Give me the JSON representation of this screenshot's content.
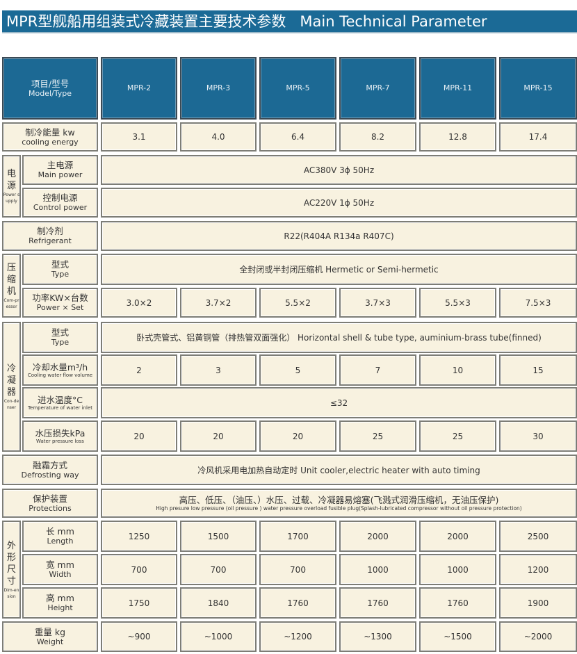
{
  "title": "MPR型舰船用组装式冷藏装置主要技术参数   Main Technical Parameter",
  "colors": {
    "header_blue": "#1c6994",
    "cell_beige": "#f8f2e0"
  },
  "header": {
    "label_cn": "项目/型号",
    "label_en": "Model/Type",
    "models": [
      "MPR-2",
      "MPR-3",
      "MPR-5",
      "MPR-7",
      "MPR-11",
      "MPR-15"
    ]
  },
  "groups": {
    "power": {
      "cn": "电源",
      "en": "Power supply"
    },
    "compressor": {
      "cn": "压缩机",
      "en": "Com-pressor"
    },
    "condenser": {
      "cn": "冷凝器",
      "en": "Con-denser"
    },
    "dimension": {
      "cn": "外形尺寸",
      "en": "Dim-ension"
    }
  },
  "rows": {
    "cooling_energy": {
      "cn": "制冷能量 kw",
      "en": "cooling energy",
      "values": [
        "3.1",
        "4.0",
        "6.4",
        "8.2",
        "12.8",
        "17.4"
      ]
    },
    "main_power": {
      "cn": "主电源",
      "en": "Main power",
      "value": "AC380V 3ϕ 50Hz"
    },
    "control_power": {
      "cn": "控制电源",
      "en": "Control power",
      "value": "AC220V 1ϕ 50Hz"
    },
    "refrigerant": {
      "cn": "制冷剂",
      "en": "Refrigerant",
      "value": "R22(R404A R134a R407C)"
    },
    "compressor_type": {
      "cn": "型式",
      "en": "Type",
      "value": "全封闭或半封闭压缩机   Hermetic or Semi-hermetic"
    },
    "power_set": {
      "cn": "功率KW×台数",
      "en": "Power × Set",
      "values": [
        "3.0×2",
        "3.7×2",
        "5.5×2",
        "3.7×3",
        "5.5×3",
        "7.5×3"
      ]
    },
    "condenser_type": {
      "cn": "型式",
      "en": "Type",
      "value": "卧式壳管式、铝黄铜管（排热管双面强化） Horizontal shell & tube type, auminium-brass tube(finned)"
    },
    "cooling_water_flow": {
      "cn": "冷却水量m³/h",
      "en": "Cooling water flow volume",
      "values": [
        "2",
        "3",
        "5",
        "7",
        "10",
        "15"
      ]
    },
    "water_inlet_temp": {
      "cn": "进水温度°C",
      "en": "Temperature of water inlet",
      "value": "≤32"
    },
    "water_pressure_loss": {
      "cn": "水压损失kPa",
      "en": "Water pressure loss",
      "values": [
        "20",
        "20",
        "20",
        "25",
        "25",
        "30"
      ]
    },
    "defrosting": {
      "cn": "融霜方式",
      "en": "Defrosting way",
      "value": "冷风机采用电加热自动定时 Unit cooler,electric heater with auto timing"
    },
    "protections": {
      "cn": "保护装置",
      "en": "Protections",
      "value_cn": "高压、低压、（油压、）水压、过载、冷凝器易熔塞(飞溅式润滑压缩机，无油压保护)",
      "value_en": "High presure  low pressure  (oil pressure ) water pressure  overload  fusible plug(Splash-lubricated compressor without oil pressure protection)"
    },
    "length": {
      "cn": "长 mm",
      "en": "Length",
      "values": [
        "1250",
        "1500",
        "1700",
        "2000",
        "2000",
        "2500"
      ]
    },
    "width": {
      "cn": "宽 mm",
      "en": "Width",
      "values": [
        "700",
        "700",
        "700",
        "1000",
        "1000",
        "1200"
      ]
    },
    "height": {
      "cn": "高 mm",
      "en": "Height",
      "values": [
        "1750",
        "1840",
        "1760",
        "1760",
        "1760",
        "1900"
      ]
    },
    "weight": {
      "cn": "重量 kg",
      "en": "Weight",
      "values": [
        "~900",
        "~1000",
        "~1200",
        "~1300",
        "~1500",
        "~2000"
      ]
    }
  }
}
